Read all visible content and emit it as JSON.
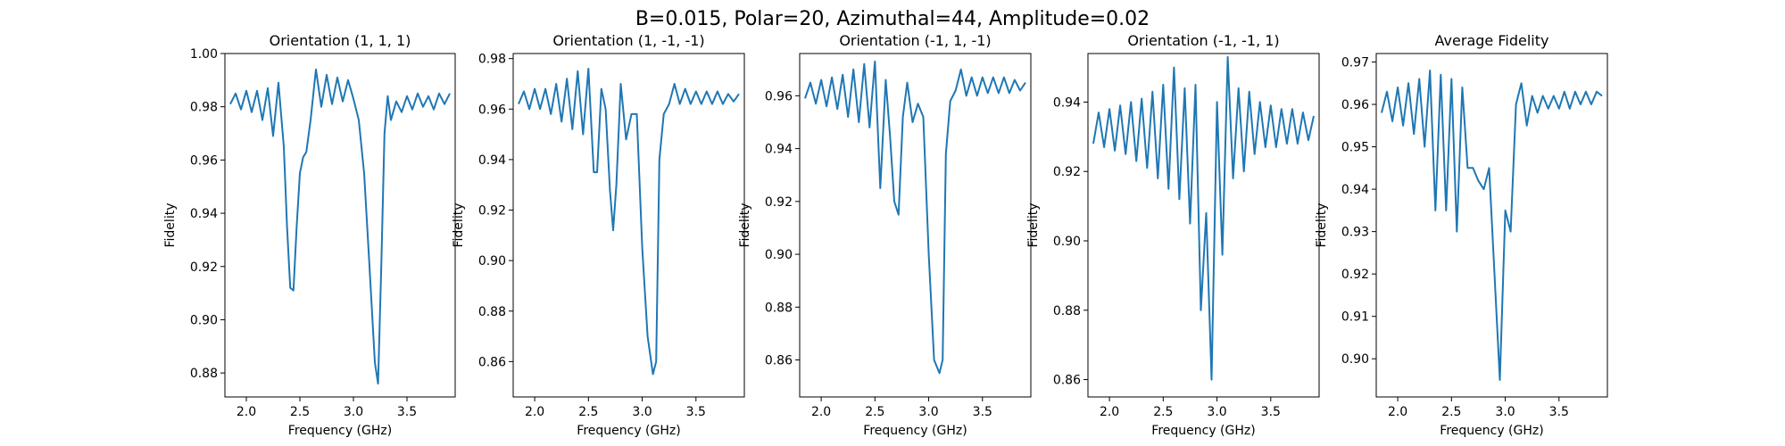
{
  "figure": {
    "suptitle": "B=0.015, Polar=20, Azimuthal=44, Amplitude=0.02"
  },
  "chart_data": [
    {
      "type": "line",
      "title": "Orientation (1, 1, 1)",
      "xlabel": "Frequency (GHz)",
      "ylabel": "Fidelity",
      "xlim": [
        1.8,
        3.95
      ],
      "ylim": [
        0.871,
        1.0
      ],
      "xticks": [
        2.0,
        2.5,
        3.0,
        3.5
      ],
      "xtick_labels": [
        "2.0",
        "2.5",
        "3.0",
        "3.5"
      ],
      "yticks": [
        0.88,
        0.9,
        0.92,
        0.94,
        0.96,
        0.98,
        1.0
      ],
      "ytick_labels": [
        "0.88",
        "0.90",
        "0.92",
        "0.94",
        "0.96",
        "0.98",
        "1.00"
      ],
      "grid": false,
      "color": "#1f77b4",
      "series": [
        {
          "x": [
            1.85,
            1.9,
            1.95,
            2.0,
            2.05,
            2.1,
            2.15,
            2.2,
            2.25,
            2.3,
            2.35,
            2.38,
            2.41,
            2.44,
            2.47,
            2.5,
            2.53,
            2.56,
            2.6,
            2.65,
            2.7,
            2.75,
            2.8,
            2.85,
            2.9,
            2.95,
            3.0,
            3.05,
            3.1,
            3.15,
            3.2,
            3.23,
            3.26,
            3.29,
            3.32,
            3.35,
            3.4,
            3.45,
            3.5,
            3.55,
            3.6,
            3.65,
            3.7,
            3.75,
            3.8,
            3.85,
            3.9
          ],
          "y": [
            0.981,
            0.985,
            0.979,
            0.986,
            0.978,
            0.986,
            0.975,
            0.987,
            0.969,
            0.989,
            0.965,
            0.935,
            0.912,
            0.911,
            0.935,
            0.955,
            0.961,
            0.963,
            0.975,
            0.994,
            0.98,
            0.992,
            0.981,
            0.991,
            0.982,
            0.99,
            0.983,
            0.975,
            0.955,
            0.92,
            0.884,
            0.876,
            0.92,
            0.97,
            0.984,
            0.975,
            0.982,
            0.978,
            0.984,
            0.979,
            0.985,
            0.98,
            0.984,
            0.979,
            0.985,
            0.981,
            0.985
          ]
        }
      ]
    },
    {
      "type": "line",
      "title": "Orientation (1, -1, -1)",
      "xlabel": "Frequency (GHz)",
      "ylabel": "Fidelity",
      "xlim": [
        1.8,
        3.95
      ],
      "ylim": [
        0.846,
        0.982
      ],
      "xticks": [
        2.0,
        2.5,
        3.0,
        3.5
      ],
      "xtick_labels": [
        "2.0",
        "2.5",
        "3.0",
        "3.5"
      ],
      "yticks": [
        0.86,
        0.88,
        0.9,
        0.92,
        0.94,
        0.96,
        0.98
      ],
      "ytick_labels": [
        "0.86",
        "0.88",
        "0.90",
        "0.92",
        "0.94",
        "0.96",
        "0.98"
      ],
      "grid": false,
      "color": "#1f77b4",
      "series": [
        {
          "x": [
            1.85,
            1.9,
            1.95,
            2.0,
            2.05,
            2.1,
            2.15,
            2.2,
            2.25,
            2.3,
            2.35,
            2.4,
            2.45,
            2.5,
            2.55,
            2.58,
            2.62,
            2.66,
            2.7,
            2.73,
            2.76,
            2.8,
            2.85,
            2.9,
            2.95,
            3.0,
            3.05,
            3.1,
            3.13,
            3.16,
            3.2,
            3.25,
            3.3,
            3.35,
            3.4,
            3.45,
            3.5,
            3.55,
            3.6,
            3.65,
            3.7,
            3.75,
            3.8,
            3.85,
            3.9
          ],
          "y": [
            0.962,
            0.967,
            0.96,
            0.968,
            0.96,
            0.968,
            0.958,
            0.97,
            0.955,
            0.972,
            0.952,
            0.975,
            0.95,
            0.976,
            0.935,
            0.935,
            0.968,
            0.96,
            0.928,
            0.912,
            0.93,
            0.97,
            0.948,
            0.958,
            0.958,
            0.905,
            0.87,
            0.855,
            0.86,
            0.94,
            0.958,
            0.962,
            0.97,
            0.962,
            0.968,
            0.962,
            0.967,
            0.962,
            0.967,
            0.962,
            0.967,
            0.962,
            0.966,
            0.963,
            0.966
          ]
        }
      ]
    },
    {
      "type": "line",
      "title": "Orientation (-1, 1, -1)",
      "xlabel": "Frequency (GHz)",
      "ylabel": "Fidelity",
      "xlim": [
        1.8,
        3.95
      ],
      "ylim": [
        0.846,
        0.976
      ],
      "xticks": [
        2.0,
        2.5,
        3.0,
        3.5
      ],
      "xtick_labels": [
        "2.0",
        "2.5",
        "3.0",
        "3.5"
      ],
      "yticks": [
        0.86,
        0.88,
        0.9,
        0.92,
        0.94,
        0.96
      ],
      "ytick_labels": [
        "0.86",
        "0.88",
        "0.90",
        "0.92",
        "0.94",
        "0.96"
      ],
      "grid": false,
      "color": "#1f77b4",
      "series": [
        {
          "x": [
            1.85,
            1.9,
            1.95,
            2.0,
            2.05,
            2.1,
            2.15,
            2.2,
            2.25,
            2.3,
            2.35,
            2.4,
            2.45,
            2.5,
            2.55,
            2.6,
            2.64,
            2.68,
            2.72,
            2.76,
            2.8,
            2.85,
            2.9,
            2.95,
            3.0,
            3.05,
            3.1,
            3.13,
            3.16,
            3.2,
            3.25,
            3.3,
            3.35,
            3.4,
            3.45,
            3.5,
            3.55,
            3.6,
            3.65,
            3.7,
            3.75,
            3.8,
            3.85,
            3.9
          ],
          "y": [
            0.959,
            0.965,
            0.957,
            0.966,
            0.956,
            0.967,
            0.955,
            0.968,
            0.952,
            0.97,
            0.95,
            0.972,
            0.948,
            0.973,
            0.925,
            0.966,
            0.945,
            0.92,
            0.915,
            0.952,
            0.965,
            0.95,
            0.957,
            0.952,
            0.9,
            0.86,
            0.855,
            0.86,
            0.938,
            0.958,
            0.962,
            0.97,
            0.96,
            0.967,
            0.96,
            0.967,
            0.961,
            0.967,
            0.961,
            0.967,
            0.961,
            0.966,
            0.962,
            0.965
          ]
        }
      ]
    },
    {
      "type": "line",
      "title": "Orientation (-1, -1, 1)",
      "xlabel": "Frequency (GHz)",
      "ylabel": "Fidelity",
      "xlim": [
        1.8,
        3.95
      ],
      "ylim": [
        0.855,
        0.954
      ],
      "xticks": [
        2.0,
        2.5,
        3.0,
        3.5
      ],
      "xtick_labels": [
        "2.0",
        "2.5",
        "3.0",
        "3.5"
      ],
      "yticks": [
        0.86,
        0.88,
        0.9,
        0.92,
        0.94
      ],
      "ytick_labels": [
        "0.86",
        "0.88",
        "0.90",
        "0.92",
        "0.94"
      ],
      "grid": false,
      "color": "#1f77b4",
      "series": [
        {
          "x": [
            1.85,
            1.9,
            1.95,
            2.0,
            2.05,
            2.1,
            2.15,
            2.2,
            2.25,
            2.3,
            2.35,
            2.4,
            2.45,
            2.5,
            2.55,
            2.6,
            2.65,
            2.7,
            2.75,
            2.8,
            2.85,
            2.9,
            2.95,
            3.0,
            3.05,
            3.1,
            3.15,
            3.2,
            3.25,
            3.3,
            3.35,
            3.4,
            3.45,
            3.5,
            3.55,
            3.6,
            3.65,
            3.7,
            3.75,
            3.8,
            3.85,
            3.9
          ],
          "y": [
            0.928,
            0.937,
            0.927,
            0.938,
            0.926,
            0.939,
            0.925,
            0.94,
            0.923,
            0.941,
            0.921,
            0.943,
            0.918,
            0.945,
            0.915,
            0.95,
            0.912,
            0.944,
            0.905,
            0.945,
            0.88,
            0.908,
            0.86,
            0.94,
            0.896,
            0.953,
            0.918,
            0.944,
            0.92,
            0.943,
            0.925,
            0.94,
            0.927,
            0.939,
            0.927,
            0.938,
            0.928,
            0.938,
            0.928,
            0.937,
            0.929,
            0.936
          ]
        }
      ]
    },
    {
      "type": "line",
      "title": "Average Fidelity",
      "xlabel": "Frequency (GHz)",
      "ylabel": "Fidelity",
      "xlim": [
        1.8,
        3.95
      ],
      "ylim": [
        0.891,
        0.972
      ],
      "xticks": [
        2.0,
        2.5,
        3.0,
        3.5
      ],
      "xtick_labels": [
        "2.0",
        "2.5",
        "3.0",
        "3.5"
      ],
      "yticks": [
        0.9,
        0.91,
        0.92,
        0.93,
        0.94,
        0.95,
        0.96,
        0.97
      ],
      "ytick_labels": [
        "0.90",
        "0.91",
        "0.92",
        "0.93",
        "0.94",
        "0.95",
        "0.96",
        "0.97"
      ],
      "grid": false,
      "color": "#1f77b4",
      "series": [
        {
          "x": [
            1.85,
            1.9,
            1.95,
            2.0,
            2.05,
            2.1,
            2.15,
            2.2,
            2.25,
            2.3,
            2.35,
            2.4,
            2.45,
            2.5,
            2.55,
            2.6,
            2.65,
            2.7,
            2.75,
            2.8,
            2.85,
            2.9,
            2.95,
            3.0,
            3.05,
            3.1,
            3.15,
            3.2,
            3.25,
            3.3,
            3.35,
            3.4,
            3.45,
            3.5,
            3.55,
            3.6,
            3.65,
            3.7,
            3.75,
            3.8,
            3.85,
            3.9
          ],
          "y": [
            0.958,
            0.963,
            0.956,
            0.964,
            0.955,
            0.965,
            0.953,
            0.966,
            0.95,
            0.968,
            0.935,
            0.967,
            0.935,
            0.966,
            0.93,
            0.964,
            0.945,
            0.945,
            0.942,
            0.94,
            0.945,
            0.92,
            0.895,
            0.935,
            0.93,
            0.96,
            0.965,
            0.955,
            0.962,
            0.958,
            0.962,
            0.959,
            0.962,
            0.959,
            0.963,
            0.959,
            0.963,
            0.96,
            0.963,
            0.96,
            0.963,
            0.962
          ]
        }
      ]
    }
  ]
}
